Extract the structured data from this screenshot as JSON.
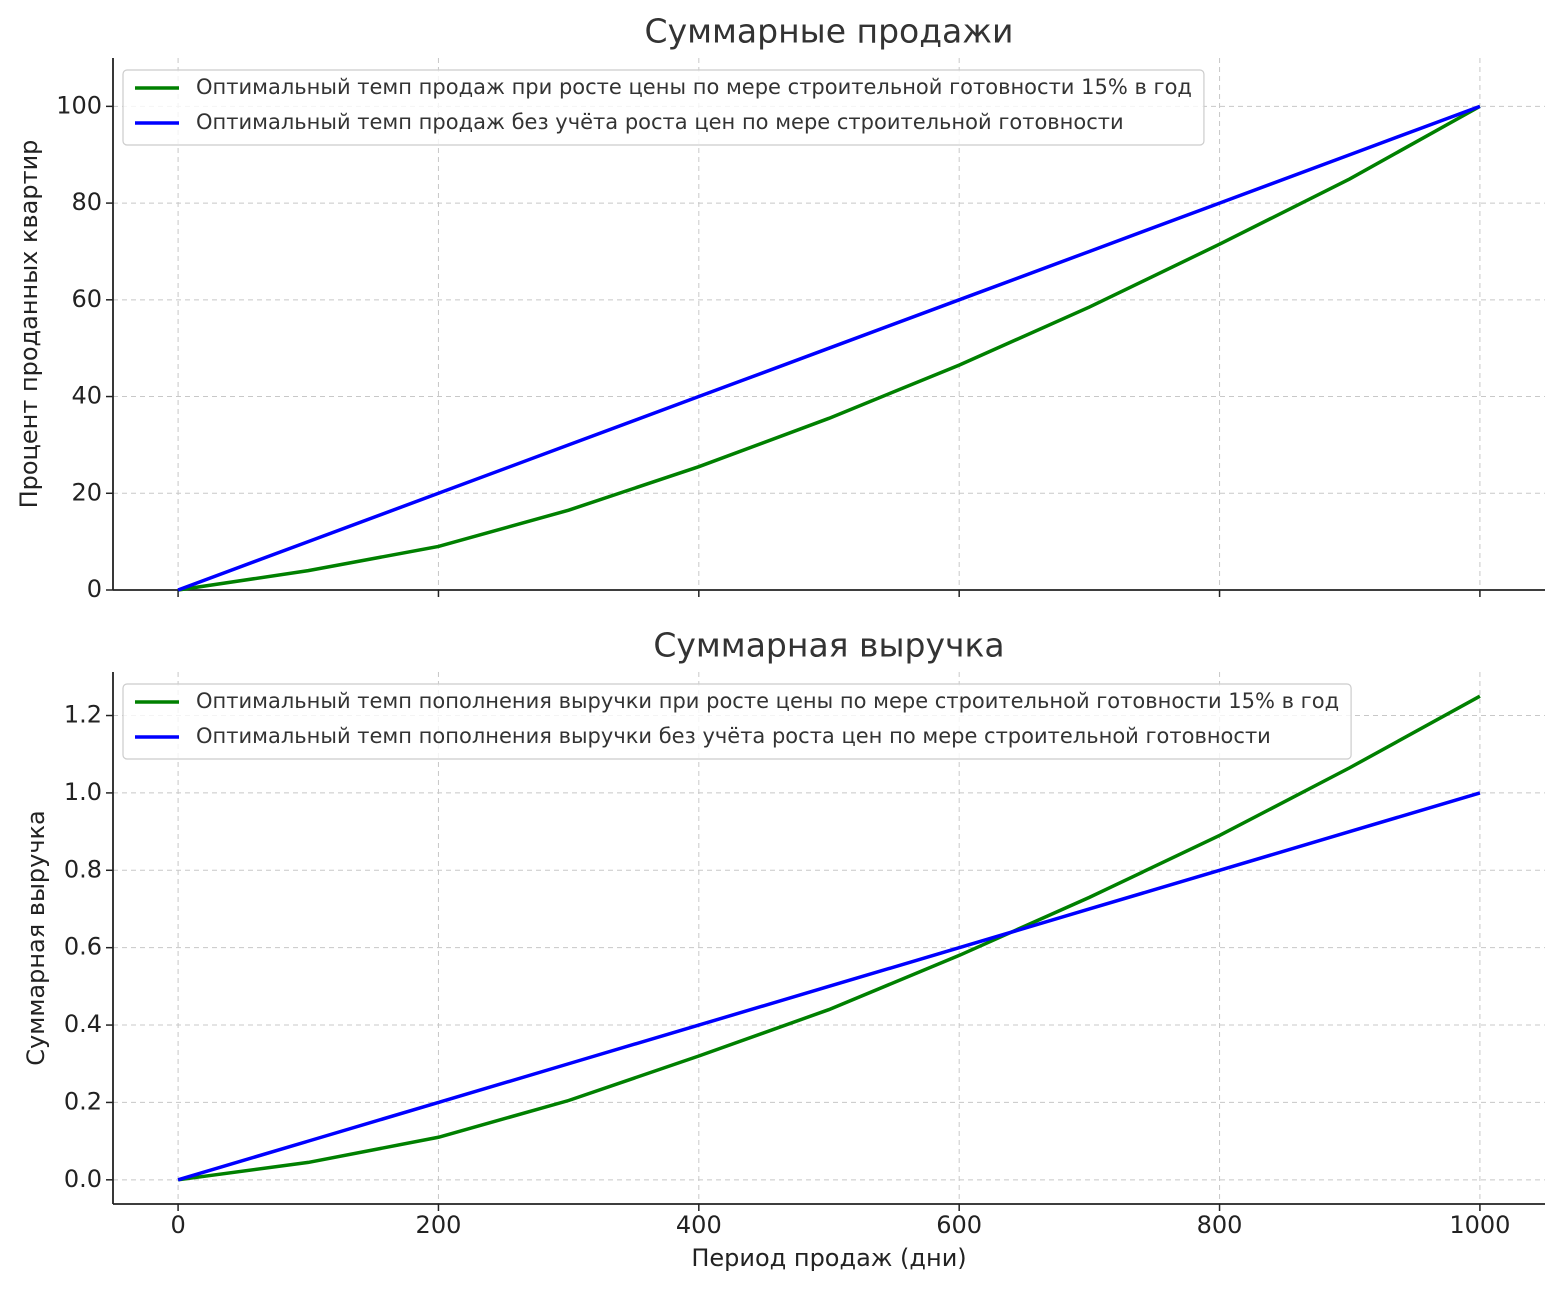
{
  "chart_data": [
    {
      "type": "line",
      "title": "Суммарные продажи",
      "y_label": "Процент проданных квартир",
      "x": [
        0,
        100,
        200,
        300,
        400,
        500,
        600,
        700,
        800,
        900,
        1000
      ],
      "series": [
        {
          "name": "Оптимальный темп продаж при росте цены по мере строительной готовности 15% в год",
          "color": "#008000",
          "values": [
            0,
            4,
            9,
            16.5,
            25.5,
            35.5,
            46.5,
            58.5,
            71.5,
            85,
            100
          ]
        },
        {
          "name": "Оптимальный темп продаж без учёта роста цен по мере строительной готовности",
          "color": "#0000ff",
          "values": [
            0,
            10,
            20,
            30,
            40,
            50,
            60,
            70,
            80,
            90,
            100
          ]
        }
      ],
      "xlim": [
        -50,
        1050
      ],
      "xticks": [
        0,
        200,
        400,
        600,
        800,
        1000
      ],
      "ylim": [
        0,
        110
      ],
      "yticks": [
        0,
        20,
        40,
        60,
        80,
        100
      ],
      "grid": true,
      "legend": "upper left"
    },
    {
      "type": "line",
      "title": "Суммарная выручка",
      "x_label": "Период продаж (дни)",
      "y_label": "Суммарная выручка",
      "x": [
        0,
        100,
        200,
        300,
        400,
        500,
        600,
        700,
        800,
        900,
        1000
      ],
      "series": [
        {
          "name": "Оптимальный темп пополнения выручки при росте цены по мере строительной готовности 15% в год",
          "color": "#008000",
          "values": [
            0,
            0.045,
            0.11,
            0.205,
            0.32,
            0.44,
            0.58,
            0.73,
            0.89,
            1.065,
            1.25
          ]
        },
        {
          "name": "Оптимальный темп пополнения выручки без учёта роста цен по мере строительной готовности",
          "color": "#0000ff",
          "values": [
            0,
            0.1,
            0.2,
            0.3,
            0.4,
            0.5,
            0.6,
            0.7,
            0.8,
            0.9,
            1
          ]
        }
      ],
      "xlim": [
        -50,
        1050
      ],
      "xticks": [
        0,
        200,
        400,
        600,
        800,
        1000
      ],
      "ylim": [
        -0.0625,
        1.3125
      ],
      "yticks": [
        {
          "value": 0,
          "label": "0.0"
        },
        0.2,
        0.4,
        0.6,
        0.8,
        {
          "value": 1,
          "label": "1.0"
        },
        1.2
      ],
      "grid": true,
      "legend": "upper left"
    }
  ]
}
